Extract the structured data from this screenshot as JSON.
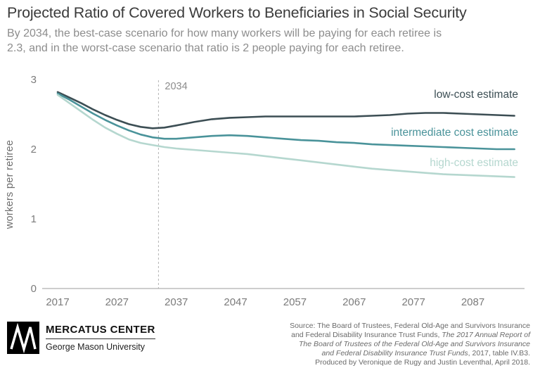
{
  "header": {
    "title": "Projected Ratio of Covered Workers to Beneficiaries in Social Security",
    "subtitle_line1": "By 2034, the best-case scenario for how many workers will be paying for each retiree is",
    "subtitle_line2": "2.3, and in the worst-case scenario that ratio is 2 people paying for each retiree."
  },
  "chart_data": {
    "type": "line",
    "title": "Projected Ratio of Covered Workers to Beneficiaries in Social Security",
    "xlabel": "",
    "ylabel": "workers per retiree",
    "ylim": [
      0,
      3
    ],
    "xlim": [
      2017,
      2095
    ],
    "x_ticks": [
      "2017",
      "2027",
      "2037",
      "2047",
      "2057",
      "2067",
      "2077",
      "2087"
    ],
    "y_ticks": [
      "0",
      "1",
      "2",
      "3"
    ],
    "grid": false,
    "legend_position": "inline-right",
    "annotation": {
      "label": "2034",
      "x": 2034,
      "style": "dashed-vertical-line"
    },
    "x": [
      2017,
      2019,
      2021,
      2023,
      2025,
      2027,
      2029,
      2031,
      2033,
      2035,
      2037,
      2040,
      2043,
      2046,
      2049,
      2052,
      2055,
      2058,
      2061,
      2064,
      2067,
      2070,
      2073,
      2076,
      2079,
      2082,
      2085,
      2088,
      2091,
      2094
    ],
    "series": [
      {
        "name": "low-cost estimate",
        "color": "#3c4e54",
        "values": [
          2.82,
          2.74,
          2.66,
          2.57,
          2.49,
          2.42,
          2.36,
          2.32,
          2.3,
          2.31,
          2.34,
          2.39,
          2.43,
          2.45,
          2.46,
          2.47,
          2.47,
          2.47,
          2.47,
          2.47,
          2.47,
          2.48,
          2.49,
          2.51,
          2.52,
          2.52,
          2.51,
          2.5,
          2.49,
          2.48
        ]
      },
      {
        "name": "intermediate cost estimate",
        "color": "#4a939a",
        "values": [
          2.8,
          2.71,
          2.61,
          2.51,
          2.42,
          2.34,
          2.27,
          2.21,
          2.17,
          2.15,
          2.15,
          2.17,
          2.19,
          2.2,
          2.19,
          2.17,
          2.15,
          2.13,
          2.12,
          2.1,
          2.09,
          2.07,
          2.06,
          2.05,
          2.04,
          2.03,
          2.02,
          2.01,
          2.0,
          2.0
        ]
      },
      {
        "name": "high-cost estimate",
        "color": "#b5d7cf",
        "values": [
          2.78,
          2.66,
          2.54,
          2.42,
          2.31,
          2.22,
          2.14,
          2.09,
          2.06,
          2.03,
          2.01,
          1.99,
          1.97,
          1.95,
          1.93,
          1.9,
          1.87,
          1.84,
          1.81,
          1.78,
          1.75,
          1.72,
          1.7,
          1.68,
          1.66,
          1.64,
          1.63,
          1.62,
          1.61,
          1.6
        ]
      }
    ]
  },
  "footer": {
    "org_name": "MERCATUS CENTER",
    "org_sub": "George Mason University",
    "source": {
      "line1": "Source: The Board of Trustees, Federal Old-Age and Survivors Insurance",
      "line2_roman": "and Federal Disability Insurance Trust Funds, ",
      "line2_italic": "The 2017 Annual Report of",
      "line3_italic": "The Board of Trustees of the Federal Old-Age and Survivors Insurance",
      "line4_italic": "and Federal Disability Insurance Trust Funds",
      "line4_roman": ", 2017, table IV.B3.",
      "line5": "Produced by Veronique de Rugy and Justin Leventhal, April 2018."
    }
  }
}
